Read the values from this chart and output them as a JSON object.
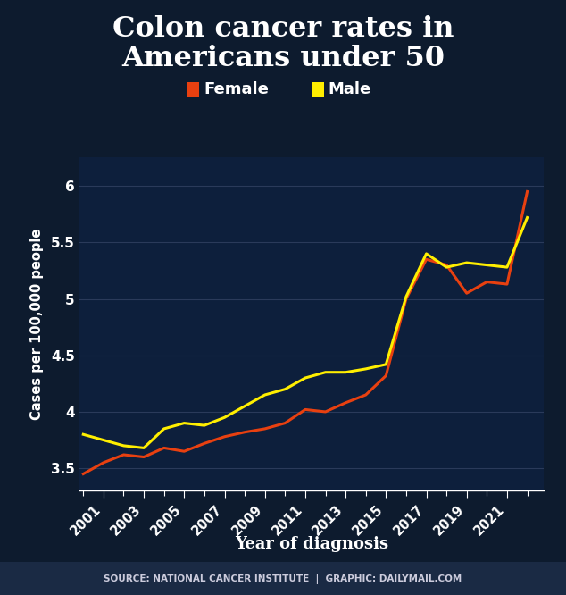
{
  "title_line1": "Colon cancer rates in",
  "title_line2": "Americans under 50",
  "xlabel": "Year of diagnosis",
  "ylabel": "Cases per 100,000 people",
  "source_text": "SOURCE: NATIONAL CANCER INSTITUTE  |  GRAPHIC: DAILYMAIL.COM",
  "bg_color": "#0d1b2e",
  "plot_bg_color": "#0d1f3c",
  "grid_color": "#2a3a5a",
  "text_color": "#ffffff",
  "title_color": "#ffffff",
  "female_color": "#e84010",
  "male_color": "#ffee00",
  "ylim": [
    3.3,
    6.25
  ],
  "yticks": [
    3.5,
    4.0,
    4.5,
    5.0,
    5.5,
    6.0
  ],
  "years": [
    2000,
    2001,
    2002,
    2003,
    2004,
    2005,
    2006,
    2007,
    2008,
    2009,
    2010,
    2011,
    2012,
    2013,
    2014,
    2015,
    2016,
    2017,
    2018,
    2019,
    2020,
    2021,
    2022
  ],
  "female": [
    3.45,
    3.55,
    3.62,
    3.6,
    3.68,
    3.65,
    3.72,
    3.78,
    3.82,
    3.85,
    3.9,
    4.02,
    4.0,
    4.08,
    4.15,
    4.32,
    5.0,
    5.35,
    5.3,
    5.05,
    5.15,
    5.13,
    5.95
  ],
  "male": [
    3.8,
    3.75,
    3.7,
    3.68,
    3.85,
    3.9,
    3.88,
    3.95,
    4.05,
    4.15,
    4.2,
    4.3,
    4.35,
    4.35,
    4.38,
    4.42,
    5.02,
    5.4,
    5.28,
    5.32,
    5.3,
    5.28,
    5.72
  ],
  "xtick_years": [
    2001,
    2003,
    2005,
    2007,
    2009,
    2011,
    2013,
    2015,
    2017,
    2019,
    2021
  ],
  "line_width": 2.2
}
